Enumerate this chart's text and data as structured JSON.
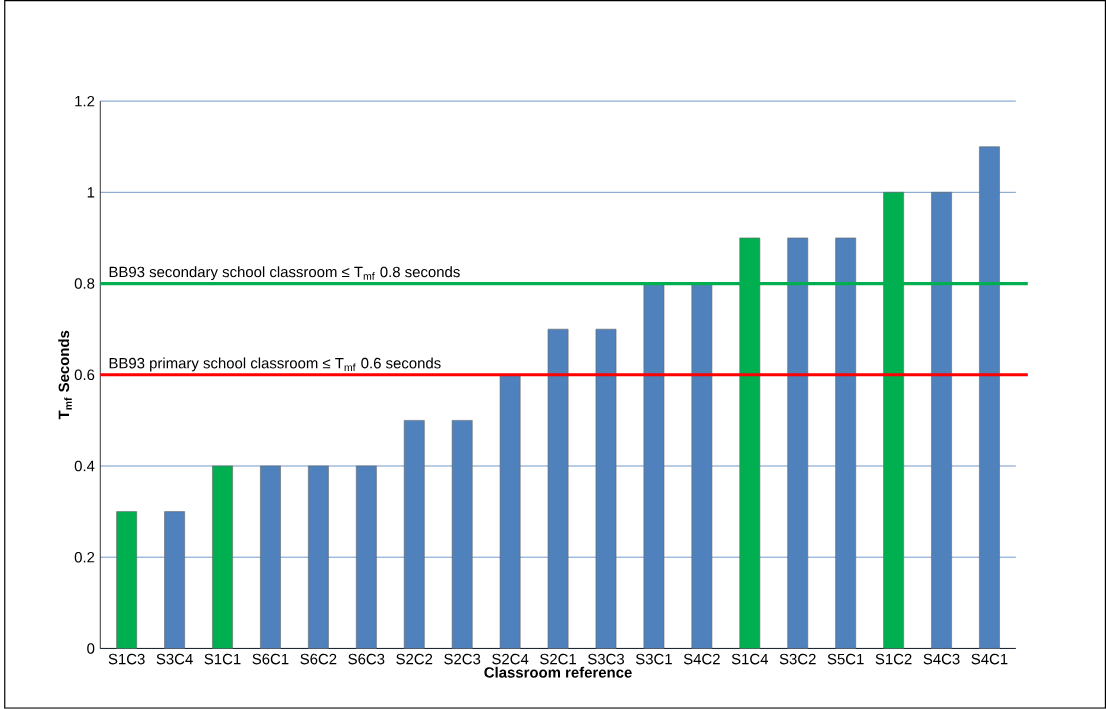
{
  "chart_data": {
    "type": "bar",
    "categories": [
      "S1C3",
      "S3C4",
      "S1C1",
      "S6C1",
      "S6C2",
      "S6C3",
      "S2C2",
      "S2C3",
      "S2C4",
      "S2C1",
      "S3C3",
      "S3C1",
      "S4C2",
      "S1C4",
      "S3C2",
      "S5C1",
      "S1C2",
      "S4C3",
      "S4C1"
    ],
    "values": [
      0.3,
      0.3,
      0.4,
      0.4,
      0.4,
      0.4,
      0.5,
      0.5,
      0.6,
      0.7,
      0.7,
      0.8,
      0.8,
      0.9,
      0.9,
      0.9,
      1.0,
      1.0,
      1.1
    ],
    "colors": [
      "#00b050",
      "#4f81bd",
      "#00b050",
      "#4f81bd",
      "#4f81bd",
      "#4f81bd",
      "#4f81bd",
      "#4f81bd",
      "#4f81bd",
      "#4f81bd",
      "#4f81bd",
      "#4f81bd",
      "#4f81bd",
      "#00b050",
      "#4f81bd",
      "#4f81bd",
      "#00b050",
      "#4f81bd",
      "#4f81bd"
    ],
    "xlabel": "Classroom reference",
    "ylabel": "T$_{mf}$ Seconds",
    "ylim": [
      0,
      1.2
    ],
    "yticks": [
      0,
      0.2,
      0.4,
      0.6,
      0.8,
      1,
      1.2
    ],
    "grid": "y",
    "ref_lines": [
      {
        "axis": "y",
        "value": 0.8,
        "label": "BB93 secondary  school classroom  ≤ T$_{mf}$ 0.8 seconds",
        "color": "#00b050"
      },
      {
        "axis": "y",
        "value": 0.6,
        "label": "BB93 primary school classroom  ≤ T$_{mf}$ 0.6 seconds",
        "color": "#ff0000"
      }
    ]
  }
}
